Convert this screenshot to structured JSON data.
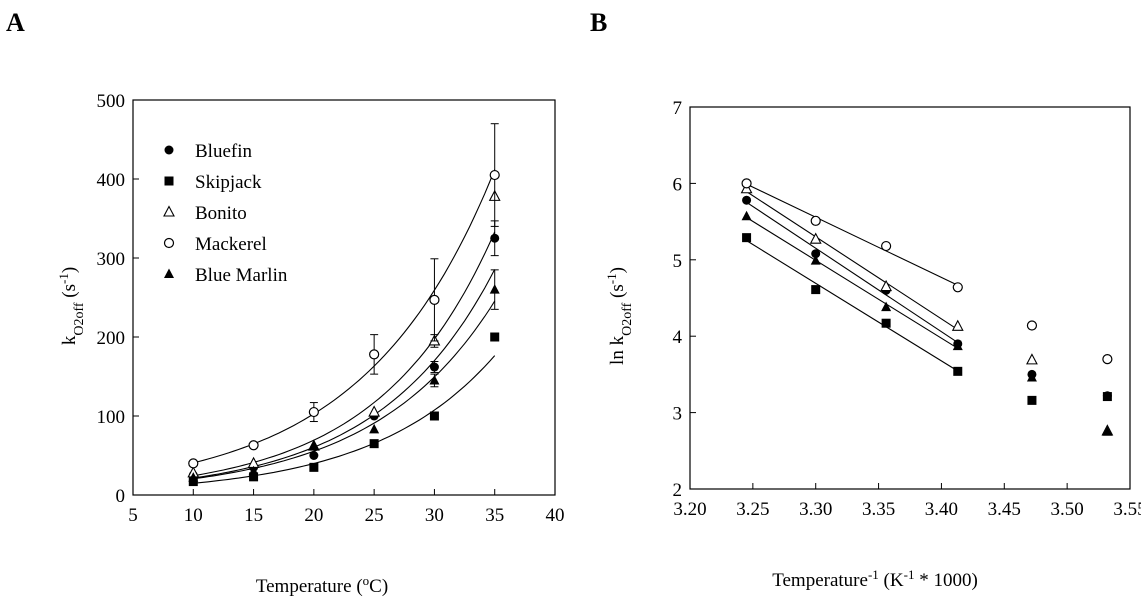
{
  "panels": {
    "a": {
      "letter": "A"
    },
    "b": {
      "letter": "B"
    }
  },
  "chart_data": [
    {
      "type": "scatter",
      "panel": "A",
      "xlabel": "Temperature (oC)",
      "xlabel_parts": {
        "main": "Temperature (",
        "sup": "o",
        "end": "C)"
      },
      "ylabel": "kO2off (s-1)",
      "ylabel_parts": {
        "k": "k",
        "sub": "O2off",
        "rest": " (s",
        "sup": "-1",
        "end": ")"
      },
      "xlim": [
        5,
        40
      ],
      "ylim": [
        0,
        500
      ],
      "xticks": [
        5,
        10,
        15,
        20,
        25,
        30,
        35,
        40
      ],
      "yticks": [
        0,
        100,
        200,
        300,
        400,
        500
      ],
      "grid": false,
      "legend": "top-left",
      "fit": "exponential",
      "series": [
        {
          "name": "Bluefin",
          "marker": "circle-filled",
          "x": [
            10,
            15,
            20,
            25,
            30,
            35
          ],
          "y": [
            25,
            35,
            50,
            100,
            162,
            325
          ],
          "err": [
            0,
            0,
            0,
            0,
            7,
            22
          ]
        },
        {
          "name": "Skipjack",
          "marker": "square-filled",
          "x": [
            10,
            15,
            20,
            25,
            30,
            35
          ],
          "y": [
            17,
            23,
            35,
            65,
            100,
            200
          ],
          "err": [
            0,
            0,
            0,
            0,
            0,
            5
          ]
        },
        {
          "name": "Bonito",
          "marker": "triangle-open",
          "x": [
            10,
            15,
            20,
            25,
            30,
            35
          ],
          "y": [
            28,
            40,
            62,
            105,
            195,
            378
          ],
          "err": [
            0,
            0,
            0,
            0,
            8,
            0
          ]
        },
        {
          "name": "Mackerel",
          "marker": "circle-open",
          "x": [
            10,
            15,
            20,
            25,
            30,
            35
          ],
          "y": [
            40,
            63,
            105,
            178,
            247,
            405
          ],
          "err": [
            0,
            0,
            12,
            25,
            52,
            65
          ]
        },
        {
          "name": "Blue Marlin",
          "marker": "triangle-filled",
          "x": [
            10,
            15,
            20,
            25,
            30,
            35
          ],
          "y": [
            22,
            30,
            62,
            83,
            145,
            260
          ],
          "err": [
            0,
            0,
            0,
            0,
            8,
            25
          ]
        }
      ]
    },
    {
      "type": "scatter",
      "panel": "B",
      "xlabel": "Temperature-1 (K-1 * 1000)",
      "xlabel_parts": {
        "main": "Temperature",
        "sup1": "-1",
        "mid": " (K",
        "sup2": "-1",
        "end": " * 1000)"
      },
      "ylabel": "ln kO2off (s-1)",
      "ylabel_parts": {
        "k": "ln k",
        "sub": "O2off",
        "rest": " (s",
        "sup": "-1",
        "end": ")"
      },
      "xlim": [
        3.2,
        3.55
      ],
      "ylim": [
        2,
        7
      ],
      "xticks": [
        "3.20",
        "3.25",
        "3.30",
        "3.35",
        "3.40",
        "3.45",
        "3.50",
        "3.55"
      ],
      "yticks": [
        2,
        3,
        4,
        5,
        6,
        7
      ],
      "grid": false,
      "fit": "linear (first four points)",
      "series": [
        {
          "name": "Bluefin",
          "marker": "circle-filled",
          "x": [
            3.245,
            3.3,
            3.356,
            3.413,
            3.472,
            3.532
          ],
          "y": [
            5.78,
            5.08,
            4.6,
            3.9,
            3.5,
            3.22
          ]
        },
        {
          "name": "Skipjack",
          "marker": "square-filled",
          "x": [
            3.245,
            3.3,
            3.356,
            3.413,
            3.472,
            3.532
          ],
          "y": [
            5.29,
            4.61,
            4.17,
            3.54,
            3.16,
            3.21
          ]
        },
        {
          "name": "Bonito",
          "marker": "triangle-open",
          "x": [
            3.245,
            3.3,
            3.356,
            3.413,
            3.472,
            3.532
          ],
          "y": [
            5.93,
            5.27,
            4.65,
            4.13,
            3.69,
            2.76
          ]
        },
        {
          "name": "Mackerel",
          "marker": "circle-open",
          "x": [
            3.245,
            3.3,
            3.356,
            3.413,
            3.472,
            3.532
          ],
          "y": [
            6.0,
            5.51,
            5.18,
            4.64,
            4.14,
            3.7
          ]
        },
        {
          "name": "Blue Marlin",
          "marker": "triangle-filled",
          "x": [
            3.245,
            3.3,
            3.356,
            3.413,
            3.472,
            3.532
          ],
          "y": [
            5.57,
            4.99,
            4.38,
            3.87,
            3.46,
            2.75
          ]
        }
      ]
    }
  ]
}
